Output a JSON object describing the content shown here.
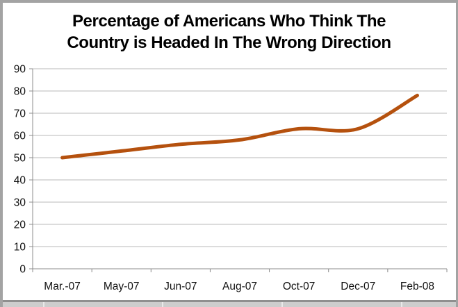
{
  "chart_data": {
    "type": "line",
    "title": "Percentage of Americans Who Think The Country is Headed In The Wrong Direction",
    "title_lines": [
      "Percentage of Americans Who Think The",
      "Country is Headed In The Wrong Direction"
    ],
    "categories": [
      "Mar.-07",
      "May-07",
      "Jun-07",
      "Aug-07",
      "Oct-07",
      "Dec-07",
      "Feb-08"
    ],
    "series": [
      {
        "values": [
          50,
          53,
          56,
          58,
          63,
          63,
          78
        ]
      }
    ],
    "ylim": [
      0,
      90
    ],
    "yticks": [
      0,
      10,
      20,
      30,
      40,
      50,
      60,
      70,
      80,
      90
    ],
    "xlabel": "",
    "ylabel": "",
    "grid": true,
    "legend": "none",
    "smoothed": true,
    "line_width": 5,
    "colors": {
      "line": "#b5510e",
      "grid": "#b9b9b9",
      "axis": "#8c8c8c",
      "text": "#111111",
      "frame": "#a3a3a3"
    }
  }
}
